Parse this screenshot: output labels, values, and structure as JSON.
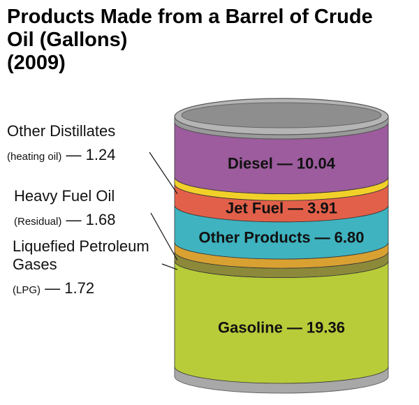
{
  "chart_data": {
    "type": "barrel",
    "title": "Products Made from a Barrel of Crude Oil (Gallons)",
    "subtitle": "(2009)",
    "separator": "—",
    "categories": [
      "Gasoline",
      "Liquefied Petroleum Gases",
      "Heavy Fuel Oil",
      "Other Products",
      "Jet Fuel",
      "Other Distillates",
      "Diesel"
    ],
    "category_notes": [
      null,
      "(LPG)",
      "(Residual)",
      null,
      null,
      "(heating oil)",
      null
    ],
    "values": [
      19.36,
      1.72,
      1.68,
      6.8,
      3.91,
      1.24,
      10.04
    ],
    "value_labels": [
      "19.36",
      "1.72",
      "1.68",
      "6.80",
      "3.91",
      "1.24",
      "10.04"
    ],
    "colors": [
      "#b8cc3a",
      "#8c8a3a",
      "#d9a132",
      "#3fb3c0",
      "#e2604a",
      "#f2d02a",
      "#9c5c9d"
    ]
  }
}
